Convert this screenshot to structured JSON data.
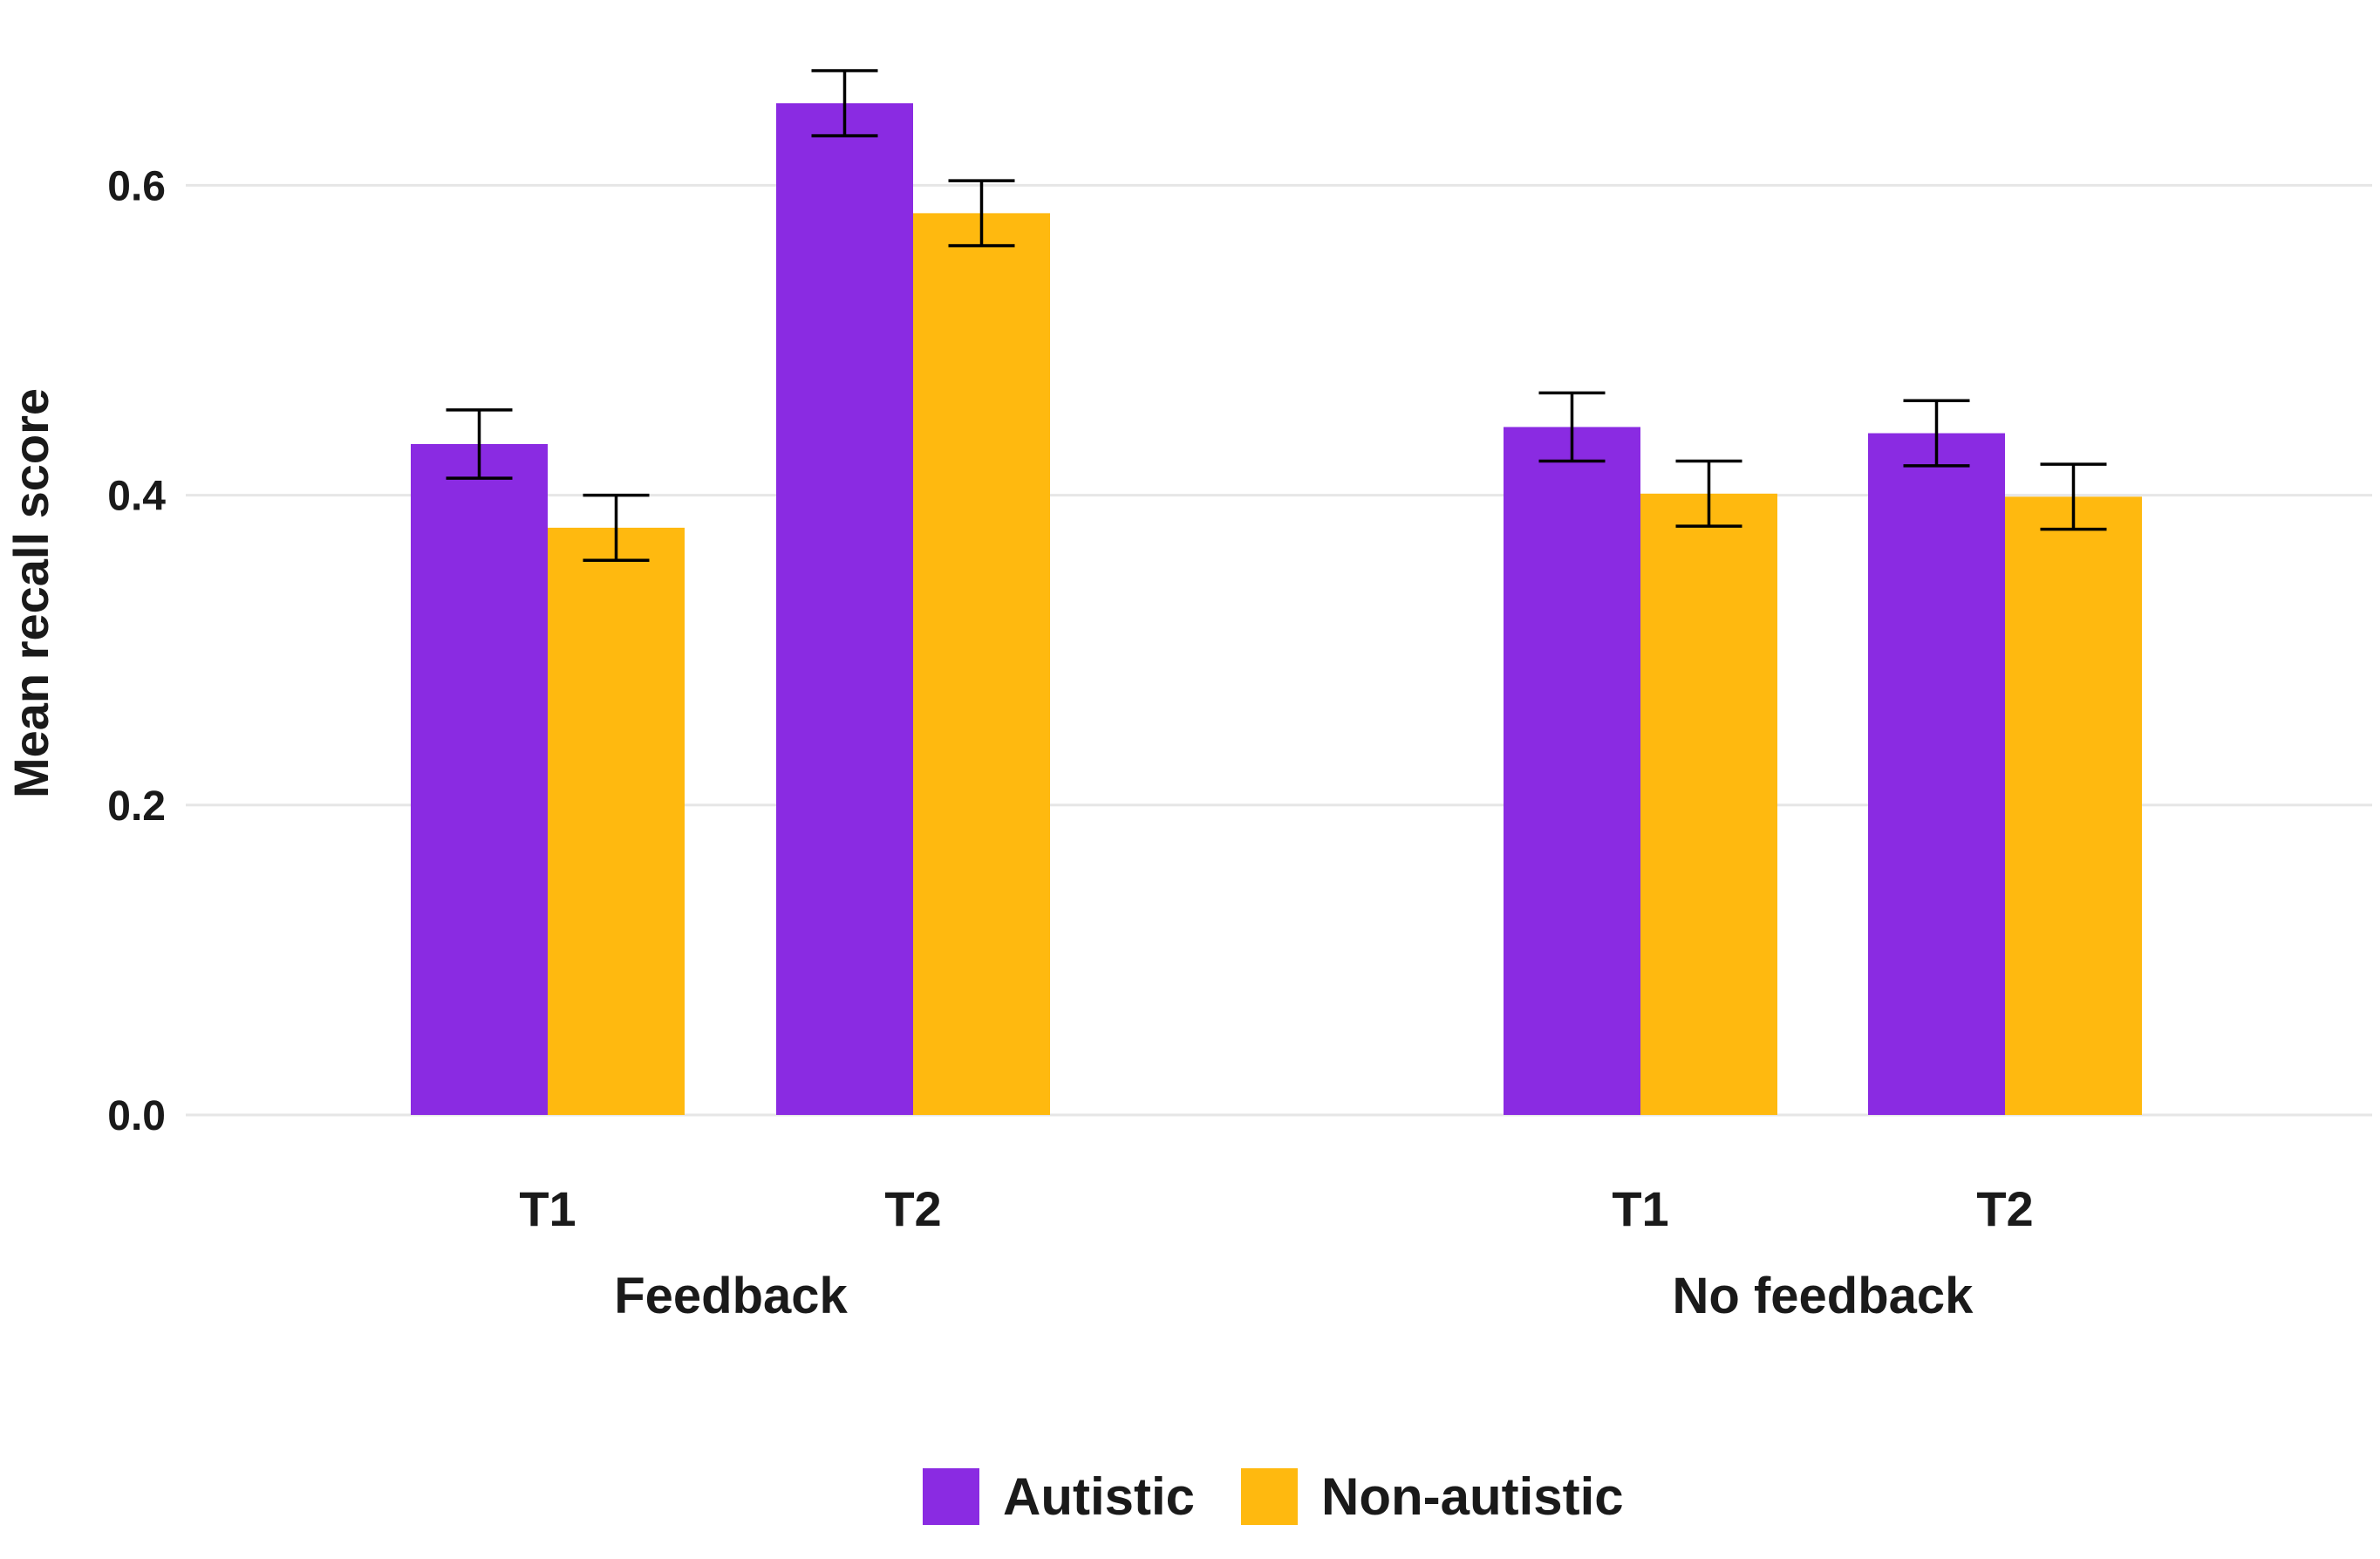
{
  "chart_data": {
    "type": "bar",
    "ylabel": "Mean recall score",
    "ylim": [
      0,
      0.7
    ],
    "yticks": [
      "0.0",
      "0.2",
      "0.4",
      "0.6"
    ],
    "ytick_values": [
      0,
      0.2,
      0.4,
      0.6
    ],
    "grid": true,
    "legend_position": "bottom",
    "groups": [
      {
        "label": "Feedback",
        "categories": [
          "T1",
          "T2"
        ],
        "series": [
          {
            "name": "Autistic",
            "values": [
              0.433,
              0.653
            ],
            "errors": [
              0.022,
              0.021
            ]
          },
          {
            "name": "Non-autistic",
            "values": [
              0.379,
              0.582
            ],
            "errors": [
              0.021,
              0.021
            ]
          }
        ]
      },
      {
        "label": "No feedback",
        "categories": [
          "T1",
          "T2"
        ],
        "series": [
          {
            "name": "Autistic",
            "values": [
              0.444,
              0.44
            ],
            "errors": [
              0.022,
              0.021
            ]
          },
          {
            "name": "Non-autistic",
            "values": [
              0.401,
              0.399
            ],
            "errors": [
              0.021,
              0.021
            ]
          }
        ]
      }
    ],
    "legend": [
      {
        "name": "Autistic",
        "color": "#8a2be2"
      },
      {
        "name": "Non-autistic",
        "color": "#ffb90f"
      }
    ]
  }
}
